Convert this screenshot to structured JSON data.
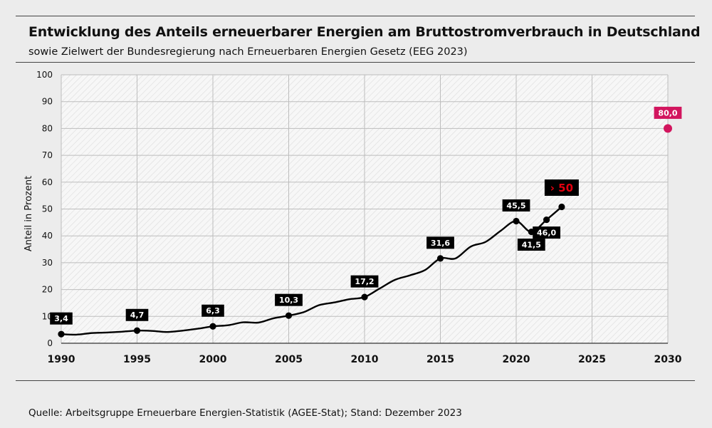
{
  "header": {
    "title": "Entwicklung des Anteils erneuerbarer Energien am Bruttostromverbrauch  in Deutschland",
    "subtitle": "sowie Zielwert der Bundesregierung nach Erneuerbaren Energien Gesetz (EEG 2023)"
  },
  "footer": {
    "source": "Quelle: Arbeitsgruppe Erneuerbare Energien-Statistik (AGEE-Stat); Stand: Dezember 2023"
  },
  "colors": {
    "line": "#000000",
    "label_bg": "#000000",
    "label_text": "#ffffff",
    "highlight_text": "#e3000f",
    "target": "#d2155e",
    "grid": "#bdbdbd",
    "plot_bg": "#f7f7f7"
  },
  "chart_data": {
    "type": "line",
    "title": "Entwicklung des Anteils erneuerbarer Energien am Bruttostromverbrauch  in Deutschland",
    "subtitle": "sowie Zielwert der Bundesregierung nach Erneuerbaren Energien Gesetz (EEG 2023)",
    "xlabel": "",
    "ylabel": "Anteil in Prozent",
    "xlim": [
      1990,
      2030
    ],
    "ylim": [
      0,
      100
    ],
    "x_ticks": [
      "1990",
      "1995",
      "2000",
      "2005",
      "2010",
      "2015",
      "2020",
      "2025",
      "2030"
    ],
    "y_ticks": [
      "0",
      "10",
      "20",
      "30",
      "40",
      "50",
      "60",
      "70",
      "80",
      "90",
      "100"
    ],
    "grid": true,
    "series": [
      {
        "x": [
          1990,
          1991,
          1992,
          1993,
          1994,
          1995,
          1996,
          1997,
          1998,
          1999,
          2000,
          2001,
          2002,
          2003,
          2004,
          2005,
          2006,
          2007,
          2008,
          2009,
          2010,
          2011,
          2012,
          2013,
          2014,
          2015,
          2016,
          2017,
          2018,
          2019,
          2020,
          2021,
          2022,
          2023
        ],
        "values": [
          3.4,
          3.2,
          3.8,
          4.0,
          4.3,
          4.7,
          4.6,
          4.2,
          4.7,
          5.4,
          6.3,
          6.7,
          7.8,
          7.7,
          9.3,
          10.3,
          11.6,
          14.2,
          15.2,
          16.4,
          17.2,
          20.4,
          23.6,
          25.3,
          27.3,
          31.6,
          31.6,
          36.0,
          37.8,
          42.0,
          45.5,
          41.5,
          46.0,
          50.8
        ]
      },
      {
        "name": "Zielwert",
        "x": [
          2030
        ],
        "values": [
          80.0
        ]
      }
    ],
    "annotations": [
      {
        "x": 1990,
        "y": 3.4,
        "text": "3,4"
      },
      {
        "x": 1995,
        "y": 4.7,
        "text": "4,7"
      },
      {
        "x": 2000,
        "y": 6.3,
        "text": "6,3"
      },
      {
        "x": 2005,
        "y": 10.3,
        "text": "10,3"
      },
      {
        "x": 2010,
        "y": 17.2,
        "text": "17,2"
      },
      {
        "x": 2015,
        "y": 31.6,
        "text": "31,6"
      },
      {
        "x": 2020,
        "y": 45.5,
        "text": "45,5"
      },
      {
        "x": 2021,
        "y": 41.5,
        "text": "41,5"
      },
      {
        "x": 2022,
        "y": 46.0,
        "text": "46,0"
      },
      {
        "x": 2023,
        "y": 50.8,
        "text": "› 50"
      },
      {
        "x": 2030,
        "y": 80.0,
        "text": "80,0"
      }
    ]
  }
}
